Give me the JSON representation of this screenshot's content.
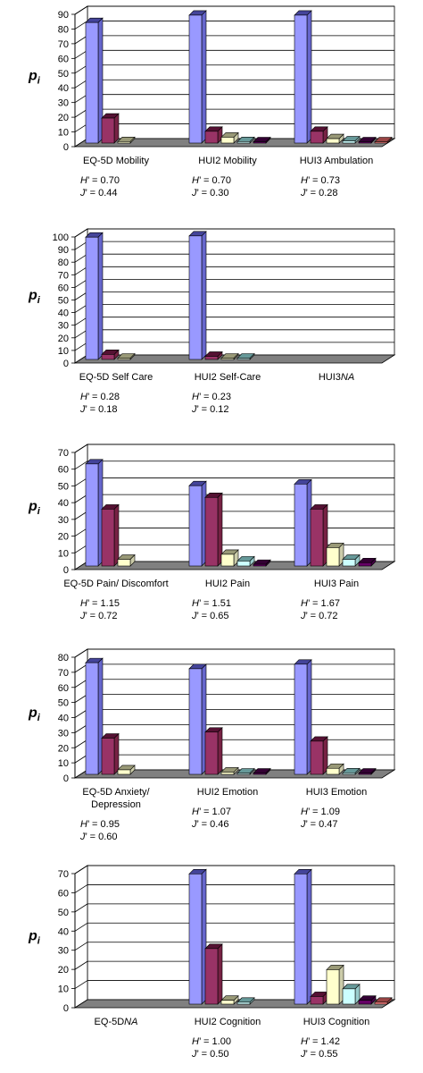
{
  "colors": {
    "c1": [
      "#9999ff",
      "#6666cc",
      "#44449a"
    ],
    "c2": [
      "#993366",
      "#772244",
      "#551133"
    ],
    "c3": [
      "#ffffcc",
      "#ccccaa",
      "#999977"
    ],
    "c4": [
      "#ccffff",
      "#99cccc",
      "#669999"
    ],
    "c5": [
      "#660066",
      "#440044",
      "#330033"
    ],
    "c6": [
      "#ff8080",
      "#cc6666",
      "#994444"
    ],
    "floor": "#808080",
    "grid": "#000000"
  },
  "chart_data": [
    {
      "type": "bar",
      "ylabel": "p",
      "ylabel_sub": "i",
      "ylim": [
        0,
        90
      ],
      "yticks": [
        0,
        10,
        20,
        30,
        40,
        50,
        60,
        70,
        80,
        90
      ],
      "grid": true,
      "groups": [
        {
          "label": [
            "EQ-5D Mobility"
          ],
          "values": [
            82,
            17,
            1
          ],
          "H": "H’ = 0.70",
          "J": "J’ = 0.44"
        },
        {
          "label": [
            "HUI2 Mobility"
          ],
          "values": [
            87,
            8,
            4,
            1,
            0.5
          ],
          "H": "H’ = 0.70",
          "J": "J’ = 0.30"
        },
        {
          "label": [
            "HUI3 Ambulation"
          ],
          "values": [
            87,
            8,
            3,
            1.5,
            0.5,
            0.5
          ],
          "H": "H’ = 0.73",
          "J": "J’ = 0.28"
        }
      ]
    },
    {
      "type": "bar",
      "ylabel": "p",
      "ylabel_sub": "i",
      "ylim": [
        0,
        100
      ],
      "yticks": [
        0,
        10,
        20,
        30,
        40,
        50,
        60,
        70,
        80,
        90,
        100
      ],
      "grid": true,
      "groups": [
        {
          "label": [
            "EQ-5D Self Care"
          ],
          "values": [
            97,
            4,
            1
          ],
          "H": "H’ = 0.28",
          "J": "J’ = 0.18"
        },
        {
          "label": [
            "HUI2 Self-Care"
          ],
          "values": [
            98,
            2.5,
            1,
            0.5
          ],
          "H": "H’ = 0.23",
          "J": "J’ = 0.12"
        },
        {
          "label": [
            "HUI3",
            "NA"
          ],
          "values": [],
          "H": "",
          "J": ""
        }
      ]
    },
    {
      "type": "bar",
      "ylabel": "p",
      "ylabel_sub": "i",
      "ylim": [
        0,
        70
      ],
      "yticks": [
        0,
        10,
        20,
        30,
        40,
        50,
        60,
        70
      ],
      "grid": true,
      "groups": [
        {
          "label": [
            "EQ-5D Pain/ Discomfort"
          ],
          "values": [
            61,
            34,
            4
          ],
          "H": "H’ = 1.15",
          "J": "J’ = 0.72"
        },
        {
          "label": [
            "HUI2 Pain"
          ],
          "values": [
            48,
            41,
            7,
            3,
            1
          ],
          "H": "H’ = 1.51",
          "J": "J’ = 0.65"
        },
        {
          "label": [
            "HUI3 Pain"
          ],
          "values": [
            49,
            34,
            11,
            4,
            2
          ],
          "H": "H’ = 1.67",
          "J": "J’ = 0.72"
        }
      ]
    },
    {
      "type": "bar",
      "ylabel": "p",
      "ylabel_sub": "i",
      "ylim": [
        0,
        80
      ],
      "yticks": [
        0,
        10,
        20,
        30,
        40,
        50,
        60,
        70,
        80
      ],
      "grid": true,
      "groups": [
        {
          "label": [
            "EQ-5D Anxiety/",
            "Depression"
          ],
          "values": [
            74,
            24,
            3
          ],
          "H": "H’ = 0.95",
          "J": "J’ = 0.60"
        },
        {
          "label": [
            "HUI2 Emotion"
          ],
          "values": [
            70,
            28,
            1.5,
            0.5,
            0.5
          ],
          "H": "H’ = 1.07",
          "J": "J’ = 0.46"
        },
        {
          "label": [
            "HUI3 Emotion"
          ],
          "values": [
            73,
            22,
            4,
            1,
            0.5
          ],
          "H": "H’ = 1.09",
          "J": "J’ = 0.47"
        }
      ]
    },
    {
      "type": "bar",
      "ylabel": "p",
      "ylabel_sub": "i",
      "ylim": [
        0,
        70
      ],
      "yticks": [
        0,
        10,
        20,
        30,
        40,
        50,
        60,
        70
      ],
      "grid": true,
      "groups": [
        {
          "label": [
            "EQ-5D",
            "NA"
          ],
          "values": [],
          "H": "",
          "J": ""
        },
        {
          "label": [
            "HUI2 Cognition"
          ],
          "values": [
            68,
            29,
            2,
            1
          ],
          "H": "H’ = 1.00",
          "J": "J’ = 0.50"
        },
        {
          "label": [
            "HUI3 Cognition"
          ],
          "values": [
            68,
            4,
            18,
            8,
            2,
            1
          ],
          "H": "H’ = 1.42",
          "J": "J’ = 0.55"
        }
      ]
    }
  ]
}
